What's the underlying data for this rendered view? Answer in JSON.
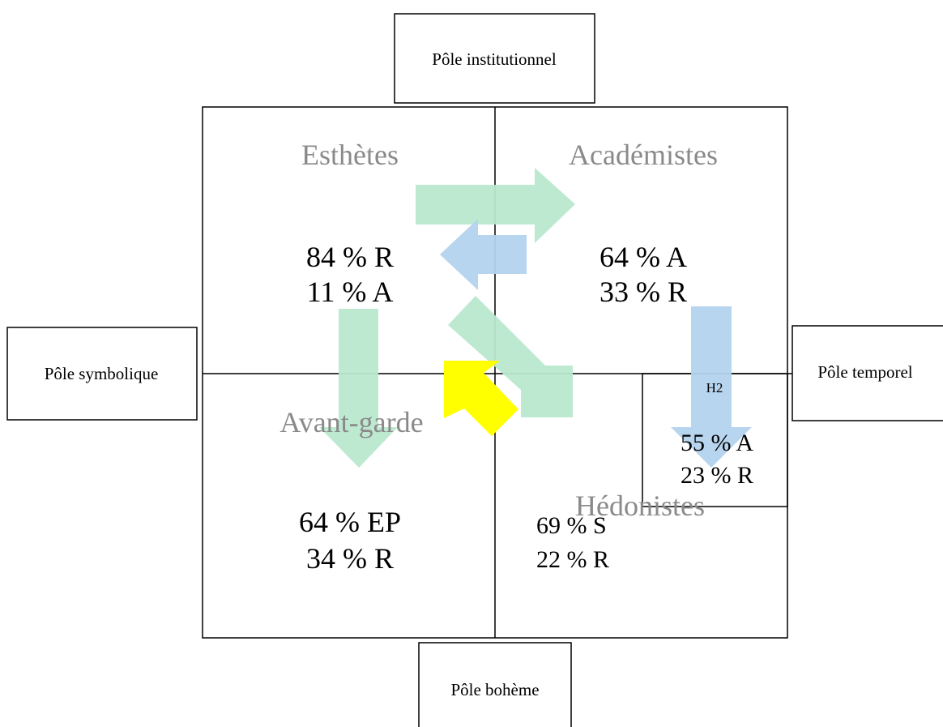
{
  "poles": {
    "top": "Pôle institutionnel",
    "left": "Pôle symbolique",
    "right": "Pôle temporel",
    "bottom": "Pôle bohème"
  },
  "quadrants": {
    "top_left": {
      "title": "Esthètes",
      "line1": "84 % R",
      "line2": "11 % A"
    },
    "top_right": {
      "title": "Académistes",
      "line1": "64 % A",
      "line2": "33 % R"
    },
    "bottom_left": {
      "title": "Avant-garde",
      "line1": "64 % EP",
      "line2": "34 % R"
    },
    "bottom_right": {
      "title": "Hédonistes",
      "line1": "69 % S",
      "line2": "22 % R"
    }
  },
  "sub_box": {
    "label": "H2",
    "line1": "55 % A",
    "line2": "23 % R"
  },
  "colors": {
    "green_arrow": "#b9e8cf",
    "blue_arrow": "#b4d3ee",
    "yellow_arrow": "#ffff00",
    "title_gray": "#8a8a8a"
  }
}
